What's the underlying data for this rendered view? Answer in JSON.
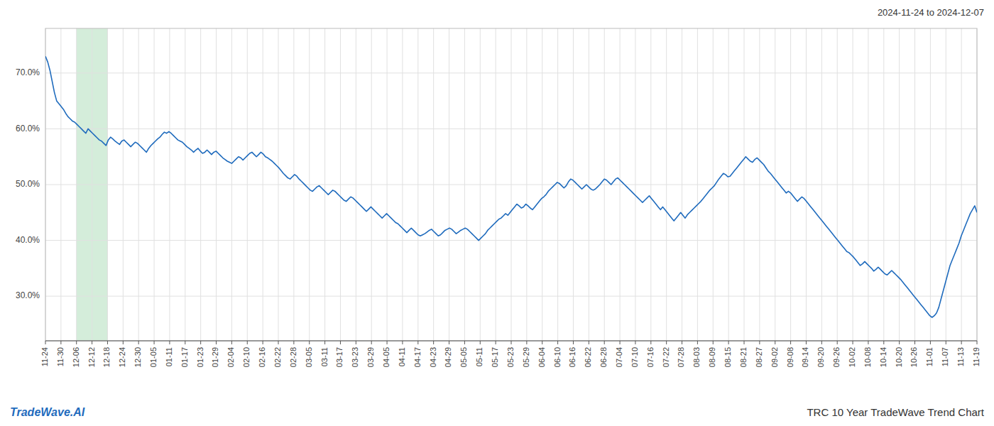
{
  "chart_data": {
    "type": "line",
    "title": "TRC 10 Year TradeWave Trend Chart",
    "subtitle": "2024-11-24 to 2024-12-07",
    "annotations": [
      {
        "text": "TradeWave.AI",
        "color": "#1f6bbd"
      }
    ],
    "grid": true,
    "xlim": [
      0,
      60
    ],
    "xticks": [
      {
        "value": 0,
        "label": "11-24"
      },
      {
        "value": 1,
        "label": "11-30"
      },
      {
        "value": 2,
        "label": "12-06"
      },
      {
        "value": 3,
        "label": "12-12"
      },
      {
        "value": 4,
        "label": "12-18"
      },
      {
        "value": 5,
        "label": "12-24"
      },
      {
        "value": 6,
        "label": "12-30"
      },
      {
        "value": 7,
        "label": "01-05"
      },
      {
        "value": 8,
        "label": "01-11"
      },
      {
        "value": 9,
        "label": "01-17"
      },
      {
        "value": 10,
        "label": "01-23"
      },
      {
        "value": 11,
        "label": "01-29"
      },
      {
        "value": 12,
        "label": "02-04"
      },
      {
        "value": 13,
        "label": "02-10"
      },
      {
        "value": 14,
        "label": "02-16"
      },
      {
        "value": 15,
        "label": "02-22"
      },
      {
        "value": 16,
        "label": "02-28"
      },
      {
        "value": 17,
        "label": "03-05"
      },
      {
        "value": 18,
        "label": "03-11"
      },
      {
        "value": 19,
        "label": "03-17"
      },
      {
        "value": 20,
        "label": "03-23"
      },
      {
        "value": 21,
        "label": "03-29"
      },
      {
        "value": 22,
        "label": "04-05"
      },
      {
        "value": 23,
        "label": "04-11"
      },
      {
        "value": 24,
        "label": "04-17"
      },
      {
        "value": 25,
        "label": "04-23"
      },
      {
        "value": 26,
        "label": "04-29"
      },
      {
        "value": 27,
        "label": "05-05"
      },
      {
        "value": 28,
        "label": "05-11"
      },
      {
        "value": 29,
        "label": "05-17"
      },
      {
        "value": 30,
        "label": "05-23"
      },
      {
        "value": 31,
        "label": "05-29"
      },
      {
        "value": 32,
        "label": "06-04"
      },
      {
        "value": 33,
        "label": "06-10"
      },
      {
        "value": 34,
        "label": "06-16"
      },
      {
        "value": 35,
        "label": "06-22"
      },
      {
        "value": 36,
        "label": "06-28"
      },
      {
        "value": 37,
        "label": "07-04"
      },
      {
        "value": 38,
        "label": "07-10"
      },
      {
        "value": 39,
        "label": "07-16"
      },
      {
        "value": 40,
        "label": "07-22"
      },
      {
        "value": 41,
        "label": "07-28"
      },
      {
        "value": 42,
        "label": "08-03"
      },
      {
        "value": 43,
        "label": "08-09"
      },
      {
        "value": 44,
        "label": "08-15"
      },
      {
        "value": 45,
        "label": "08-21"
      },
      {
        "value": 46,
        "label": "08-27"
      },
      {
        "value": 47,
        "label": "09-02"
      },
      {
        "value": 48,
        "label": "09-08"
      },
      {
        "value": 49,
        "label": "09-14"
      },
      {
        "value": 50,
        "label": "09-20"
      },
      {
        "value": 51,
        "label": "09-26"
      },
      {
        "value": 52,
        "label": "10-02"
      },
      {
        "value": 53,
        "label": "10-08"
      },
      {
        "value": 54,
        "label": "10-14"
      },
      {
        "value": 55,
        "label": "10-20"
      },
      {
        "value": 56,
        "label": "10-26"
      },
      {
        "value": 57,
        "label": "11-01"
      },
      {
        "value": 58,
        "label": "11-07"
      },
      {
        "value": 59,
        "label": "11-13"
      },
      {
        "value": 60,
        "label": "11-19"
      }
    ],
    "ylim": [
      0.22,
      0.78
    ],
    "yticks": [
      {
        "value": 0.3,
        "label": "30.0%"
      },
      {
        "value": 0.4,
        "label": "40.0%"
      },
      {
        "value": 0.5,
        "label": "50.0%"
      },
      {
        "value": 0.6,
        "label": "60.0%"
      },
      {
        "value": 0.7,
        "label": "70.0%"
      }
    ],
    "highlight": {
      "from": "12-06",
      "to": "12-18",
      "color": "#d4edda"
    },
    "series": [
      {
        "color": "#1f6bbd",
        "values": [
          0.73,
          0.72,
          0.705,
          0.685,
          0.665,
          0.65,
          0.645,
          0.64,
          0.635,
          0.628,
          0.622,
          0.618,
          0.614,
          0.612,
          0.608,
          0.604,
          0.6,
          0.596,
          0.592,
          0.6,
          0.596,
          0.592,
          0.588,
          0.584,
          0.58,
          0.578,
          0.574,
          0.57,
          0.58,
          0.585,
          0.582,
          0.578,
          0.575,
          0.572,
          0.578,
          0.58,
          0.576,
          0.572,
          0.568,
          0.572,
          0.576,
          0.574,
          0.57,
          0.566,
          0.562,
          0.558,
          0.565,
          0.57,
          0.574,
          0.578,
          0.582,
          0.585,
          0.59,
          0.594,
          0.592,
          0.595,
          0.592,
          0.588,
          0.584,
          0.58,
          0.578,
          0.576,
          0.572,
          0.568,
          0.565,
          0.562,
          0.558,
          0.562,
          0.565,
          0.56,
          0.556,
          0.558,
          0.562,
          0.558,
          0.554,
          0.558,
          0.56,
          0.556,
          0.552,
          0.548,
          0.545,
          0.542,
          0.54,
          0.538,
          0.542,
          0.546,
          0.55,
          0.548,
          0.544,
          0.548,
          0.552,
          0.556,
          0.558,
          0.554,
          0.55,
          0.554,
          0.558,
          0.555,
          0.55,
          0.548,
          0.545,
          0.542,
          0.538,
          0.534,
          0.53,
          0.525,
          0.52,
          0.516,
          0.512,
          0.51,
          0.514,
          0.518,
          0.515,
          0.51,
          0.506,
          0.502,
          0.498,
          0.494,
          0.49,
          0.488,
          0.492,
          0.496,
          0.498,
          0.494,
          0.49,
          0.486,
          0.482,
          0.486,
          0.49,
          0.488,
          0.484,
          0.48,
          0.476,
          0.472,
          0.47,
          0.474,
          0.478,
          0.476,
          0.472,
          0.468,
          0.464,
          0.46,
          0.456,
          0.452,
          0.456,
          0.46,
          0.456,
          0.452,
          0.448,
          0.444,
          0.44,
          0.444,
          0.448,
          0.444,
          0.44,
          0.436,
          0.432,
          0.43,
          0.426,
          0.422,
          0.418,
          0.414,
          0.418,
          0.422,
          0.418,
          0.414,
          0.41,
          0.408,
          0.41,
          0.412,
          0.415,
          0.418,
          0.42,
          0.416,
          0.412,
          0.408,
          0.41,
          0.414,
          0.418,
          0.42,
          0.422,
          0.42,
          0.416,
          0.412,
          0.415,
          0.418,
          0.42,
          0.422,
          0.42,
          0.416,
          0.412,
          0.408,
          0.404,
          0.4,
          0.404,
          0.408,
          0.412,
          0.418,
          0.422,
          0.426,
          0.43,
          0.434,
          0.438,
          0.44,
          0.444,
          0.448,
          0.445,
          0.45,
          0.455,
          0.46,
          0.465,
          0.462,
          0.458,
          0.46,
          0.465,
          0.462,
          0.458,
          0.455,
          0.46,
          0.465,
          0.47,
          0.475,
          0.478,
          0.482,
          0.488,
          0.492,
          0.496,
          0.5,
          0.504,
          0.502,
          0.498,
          0.494,
          0.498,
          0.505,
          0.51,
          0.508,
          0.504,
          0.5,
          0.496,
          0.492,
          0.496,
          0.5,
          0.496,
          0.492,
          0.49,
          0.492,
          0.496,
          0.5,
          0.505,
          0.51,
          0.508,
          0.504,
          0.5,
          0.505,
          0.51,
          0.512,
          0.508,
          0.504,
          0.5,
          0.496,
          0.492,
          0.488,
          0.484,
          0.48,
          0.476,
          0.472,
          0.468,
          0.472,
          0.476,
          0.48,
          0.475,
          0.47,
          0.465,
          0.46,
          0.455,
          0.46,
          0.455,
          0.45,
          0.445,
          0.44,
          0.435,
          0.44,
          0.445,
          0.45,
          0.445,
          0.44,
          0.446,
          0.45,
          0.454,
          0.458,
          0.462,
          0.466,
          0.47,
          0.475,
          0.48,
          0.485,
          0.49,
          0.494,
          0.498,
          0.504,
          0.51,
          0.515,
          0.52,
          0.518,
          0.514,
          0.515,
          0.52,
          0.525,
          0.53,
          0.535,
          0.54,
          0.545,
          0.55,
          0.546,
          0.542,
          0.54,
          0.545,
          0.548,
          0.544,
          0.54,
          0.536,
          0.53,
          0.524,
          0.52,
          0.515,
          0.51,
          0.505,
          0.5,
          0.495,
          0.49,
          0.485,
          0.488,
          0.485,
          0.48,
          0.475,
          0.47,
          0.474,
          0.478,
          0.475,
          0.47,
          0.465,
          0.46,
          0.455,
          0.45,
          0.445,
          0.44,
          0.435,
          0.43,
          0.425,
          0.42,
          0.415,
          0.41,
          0.405,
          0.4,
          0.395,
          0.39,
          0.385,
          0.38,
          0.378,
          0.374,
          0.37,
          0.365,
          0.36,
          0.355,
          0.358,
          0.362,
          0.358,
          0.354,
          0.35,
          0.345,
          0.348,
          0.352,
          0.348,
          0.344,
          0.34,
          0.338,
          0.342,
          0.346,
          0.342,
          0.338,
          0.334,
          0.33,
          0.325,
          0.32,
          0.315,
          0.31,
          0.305,
          0.3,
          0.295,
          0.29,
          0.285,
          0.28,
          0.275,
          0.27,
          0.265,
          0.262,
          0.265,
          0.27,
          0.28,
          0.295,
          0.31,
          0.325,
          0.34,
          0.355,
          0.365,
          0.375,
          0.385,
          0.395,
          0.408,
          0.418,
          0.428,
          0.438,
          0.448,
          0.455,
          0.462,
          0.45
        ]
      }
    ]
  }
}
